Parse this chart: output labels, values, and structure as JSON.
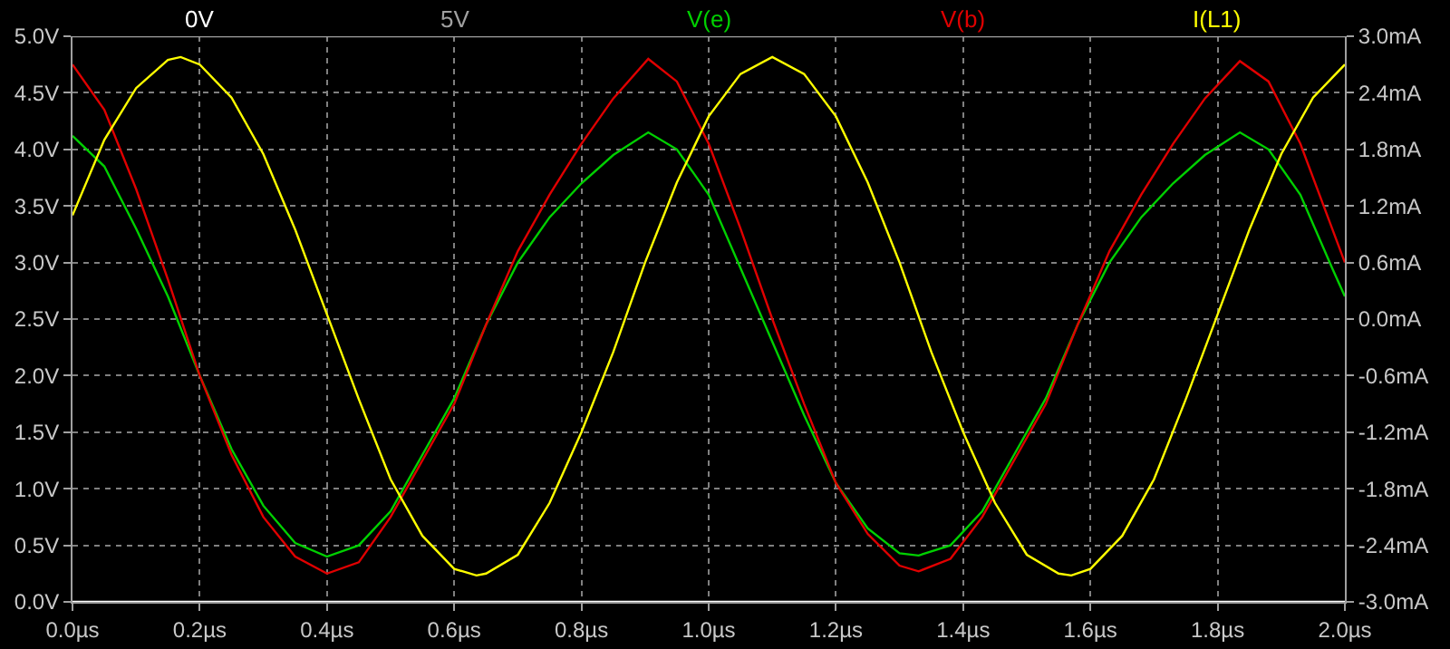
{
  "chart_data": {
    "type": "line",
    "legend": "top",
    "grid": true,
    "marker": "none",
    "line_style": "solid",
    "xlim": [
      0,
      2
    ],
    "ylim": [
      0,
      5
    ],
    "y2lim": [
      -3,
      3
    ],
    "xticks": [
      {
        "value": 0,
        "label": "0.0µs"
      },
      {
        "value": 0.2,
        "label": "0.2µs"
      },
      {
        "value": 0.4,
        "label": "0.4µs"
      },
      {
        "value": 0.6,
        "label": "0.6µs"
      },
      {
        "value": 0.8,
        "label": "0.8µs"
      },
      {
        "value": 1,
        "label": "1.0µs"
      },
      {
        "value": 1.2,
        "label": "1.2µs"
      },
      {
        "value": 1.4,
        "label": "1.4µs"
      },
      {
        "value": 1.6,
        "label": "1.6µs"
      },
      {
        "value": 1.8,
        "label": "1.8µs"
      },
      {
        "value": 2,
        "label": "2.0µs"
      }
    ],
    "yticks": [
      {
        "value": 0,
        "label": "0.0V"
      },
      {
        "value": 0.5,
        "label": "0.5V"
      },
      {
        "value": 1,
        "label": "1.0V"
      },
      {
        "value": 1.5,
        "label": "1.5V"
      },
      {
        "value": 2,
        "label": "2.0V"
      },
      {
        "value": 2.5,
        "label": "2.5V"
      },
      {
        "value": 3,
        "label": "3.0V"
      },
      {
        "value": 3.5,
        "label": "3.5V"
      },
      {
        "value": 4,
        "label": "4.0V"
      },
      {
        "value": 4.5,
        "label": "4.5V"
      },
      {
        "value": 5,
        "label": "5.0V"
      }
    ],
    "y2ticks": [
      {
        "value": -3,
        "label": "-3.0mA"
      },
      {
        "value": -2.4,
        "label": "-2.4mA"
      },
      {
        "value": -1.8,
        "label": "-1.8mA"
      },
      {
        "value": -1.2,
        "label": "-1.2mA"
      },
      {
        "value": -0.6,
        "label": "-0.6mA"
      },
      {
        "value": 0,
        "label": "0.0mA"
      },
      {
        "value": 0.6,
        "label": "0.6mA"
      },
      {
        "value": 1.2,
        "label": "1.2mA"
      },
      {
        "value": 1.8,
        "label": "1.8mA"
      },
      {
        "value": 2.4,
        "label": "2.4mA"
      },
      {
        "value": 3,
        "label": "3.0mA"
      }
    ],
    "series": [
      {
        "name": "0V",
        "color": "#ffffff",
        "x": [
          0,
          2
        ],
        "values": [
          0,
          0
        ]
      },
      {
        "name": "5V",
        "color": "#a0a0a0",
        "x": [
          0,
          2
        ],
        "values": [
          5,
          5
        ]
      },
      {
        "name": "V(e)",
        "color": "#00d000",
        "x": [
          0,
          0.05,
          0.1,
          0.15,
          0.2,
          0.25,
          0.3,
          0.35,
          0.4,
          0.45,
          0.5,
          0.55,
          0.6,
          0.65,
          0.7,
          0.75,
          0.8,
          0.85,
          0.905,
          0.95,
          1,
          1.05,
          1.1,
          1.15,
          1.2,
          1.25,
          1.3,
          1.33,
          1.38,
          1.43,
          1.48,
          1.53,
          1.58,
          1.63,
          1.68,
          1.73,
          1.78,
          1.835,
          1.88,
          1.93,
          1.98,
          2
        ],
        "values": [
          4.12,
          3.85,
          3.3,
          2.7,
          2.0,
          1.35,
          0.85,
          0.52,
          0.4,
          0.5,
          0.8,
          1.3,
          1.8,
          2.45,
          3.0,
          3.4,
          3.7,
          3.95,
          4.15,
          4.0,
          3.6,
          2.95,
          2.3,
          1.65,
          1.05,
          0.65,
          0.43,
          0.41,
          0.5,
          0.8,
          1.3,
          1.8,
          2.45,
          3.0,
          3.4,
          3.7,
          3.95,
          4.15,
          4.0,
          3.6,
          2.95,
          2.7
        ]
      },
      {
        "name": "V(b)",
        "color": "#e00000",
        "x": [
          0,
          0.05,
          0.1,
          0.15,
          0.2,
          0.25,
          0.3,
          0.35,
          0.4,
          0.45,
          0.5,
          0.55,
          0.6,
          0.65,
          0.7,
          0.75,
          0.8,
          0.85,
          0.905,
          0.95,
          1,
          1.05,
          1.1,
          1.15,
          1.2,
          1.25,
          1.3,
          1.33,
          1.38,
          1.43,
          1.48,
          1.53,
          1.58,
          1.63,
          1.68,
          1.73,
          1.78,
          1.835,
          1.88,
          1.93,
          1.98,
          2
        ],
        "values": [
          4.75,
          4.35,
          3.65,
          2.85,
          2.0,
          1.3,
          0.75,
          0.4,
          0.25,
          0.35,
          0.75,
          1.25,
          1.75,
          2.45,
          3.1,
          3.6,
          4.05,
          4.45,
          4.8,
          4.6,
          4.05,
          3.3,
          2.5,
          1.75,
          1.05,
          0.6,
          0.32,
          0.27,
          0.38,
          0.75,
          1.25,
          1.75,
          2.45,
          3.1,
          3.6,
          4.05,
          4.45,
          4.78,
          4.6,
          4.05,
          3.3,
          3.0
        ]
      },
      {
        "name": "I(L1)",
        "color": "#ffff00",
        "axis": "y2",
        "x": [
          0,
          0.05,
          0.1,
          0.15,
          0.17,
          0.2,
          0.25,
          0.3,
          0.35,
          0.4,
          0.45,
          0.5,
          0.55,
          0.6,
          0.635,
          0.65,
          0.7,
          0.75,
          0.8,
          0.85,
          0.9,
          0.95,
          1,
          1.05,
          1.1,
          1.15,
          1.2,
          1.25,
          1.3,
          1.35,
          1.4,
          1.45,
          1.5,
          1.55,
          1.57,
          1.6,
          1.65,
          1.7,
          1.75,
          1.8,
          1.85,
          1.9,
          1.95,
          2
        ],
        "values": [
          1.1,
          1.9,
          2.45,
          2.75,
          2.78,
          2.7,
          2.35,
          1.75,
          0.95,
          0.05,
          -0.85,
          -1.7,
          -2.3,
          -2.65,
          -2.72,
          -2.7,
          -2.5,
          -1.95,
          -1.2,
          -0.35,
          0.6,
          1.45,
          2.15,
          2.6,
          2.78,
          2.6,
          2.15,
          1.45,
          0.6,
          -0.35,
          -1.2,
          -1.95,
          -2.5,
          -2.7,
          -2.72,
          -2.65,
          -2.3,
          -1.7,
          -0.85,
          0.05,
          0.95,
          1.75,
          2.35,
          2.7
        ]
      }
    ]
  }
}
